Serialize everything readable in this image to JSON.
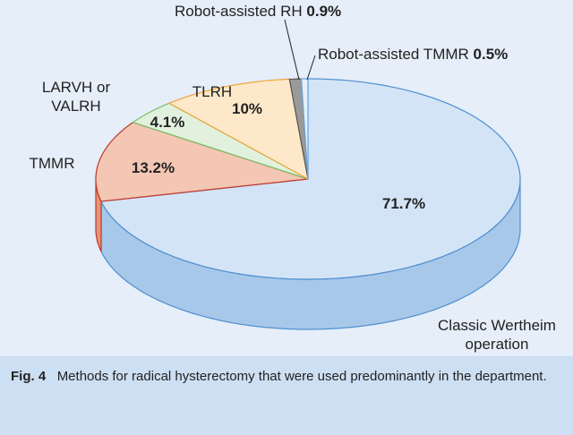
{
  "chart_data": {
    "type": "pie3d",
    "categories": [
      "Classic Wertheim operation",
      "TMMR",
      "LARVH or VALRH",
      "TLRH",
      "Robot-assisted RH",
      "Robot-assisted TMMR"
    ],
    "values": [
      71.7,
      13.2,
      4.1,
      10,
      0.9,
      0.5
    ],
    "value_labels": [
      "71.7%",
      "13.2%",
      "4.1%",
      "10%",
      "0.9%",
      "0.5%"
    ],
    "colors": [
      "#d4e4f7",
      "#f3c7b3",
      "#e2f1dd",
      "#fde9c9",
      "#9a9a9a",
      "#e3f0fb"
    ]
  },
  "caption": {
    "label": "Fig. 4",
    "text": "Methods for radical hysterectomy that were used predominantly in the department."
  }
}
